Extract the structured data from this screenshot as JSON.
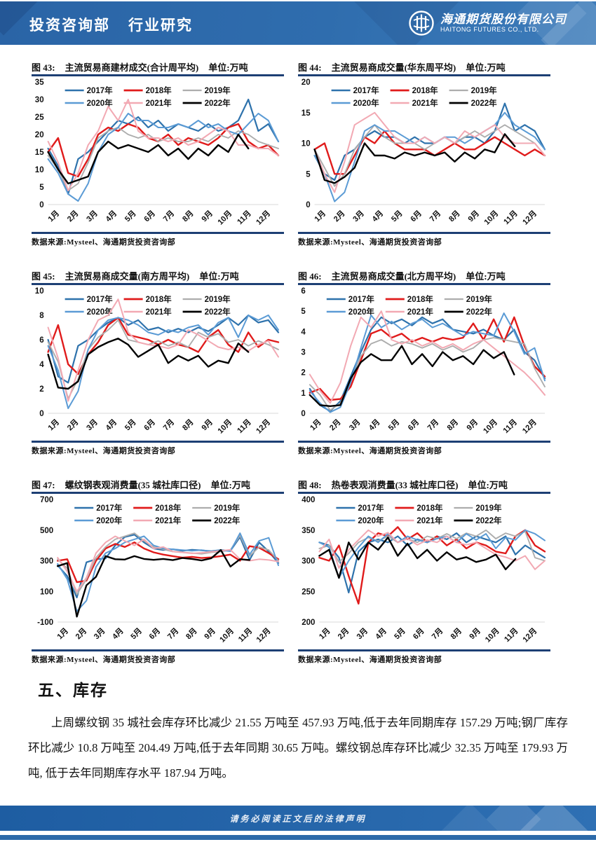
{
  "header": {
    "dept": "投资咨询部",
    "section": "行业研究",
    "company_cn": "海通期货股份有限公司",
    "company_en": "HAITONG FUTURES CO., LTD."
  },
  "footer": {
    "disclaimer": "请务必阅读正文后的法律声明"
  },
  "section": {
    "heading": "五、库存",
    "paragraph": "上周螺纹钢 35 城社会库存环比减少 21.55 万吨至 457.93 万吨,低于去年同期库存 157.29 万吨;钢厂库存环比减少 10.8 万吨至 204.49 万吨,低于去年同期 30.65 万吨。螺纹钢总库存环比减少 32.35 万吨至 179.93 万吨, 低于去年同期库存水平 187.94 万吨。"
  },
  "source_label": "数据来源:Mysteel、海通期货投资咨询部",
  "months": [
    "1月",
    "2月",
    "3月",
    "4月",
    "5月",
    "6月",
    "7月",
    "8月",
    "9月",
    "10月",
    "11月",
    "12月"
  ],
  "series_styles": [
    {
      "name": "2017年",
      "color": "#2E72AC",
      "width": 2.2
    },
    {
      "name": "2018年",
      "color": "#E01B1B",
      "width": 2.4
    },
    {
      "name": "2019年",
      "color": "#ADADAD",
      "width": 1.9
    },
    {
      "name": "2020年",
      "color": "#5B9BD5",
      "width": 2.0
    },
    {
      "name": "2021年",
      "color": "#F2A9B3",
      "width": 2.0
    },
    {
      "name": "2022年",
      "color": "#000000",
      "width": 2.4
    }
  ],
  "chart_data": [
    {
      "type": "line",
      "fig_label": "图 43:",
      "title": "主流贸易商建材成交(合计周平均)",
      "unit": "单位:万吨",
      "ylim": [
        0,
        35
      ],
      "ystep": 5,
      "legend_position": "top-inside",
      "grid": false,
      "series": [
        {
          "name": "2017年",
          "values": [
            16,
            11,
            3,
            13,
            15,
            18,
            21,
            24,
            23,
            25,
            22,
            24,
            21,
            23,
            22,
            21,
            23,
            21,
            22,
            24,
            30,
            21,
            23,
            18
          ]
        },
        {
          "name": "2018年",
          "values": [
            15,
            19,
            9,
            8,
            13,
            20,
            22,
            21,
            23,
            22,
            19,
            18,
            20,
            17,
            19,
            18,
            17,
            19,
            22,
            23,
            18,
            16,
            17,
            14
          ]
        },
        {
          "name": "2019年",
          "values": [
            14,
            10,
            4,
            6,
            12,
            19,
            21,
            22,
            20,
            19,
            20,
            18,
            19,
            18,
            18,
            19,
            18,
            20,
            19,
            21,
            20,
            18,
            17,
            16
          ]
        },
        {
          "name": "2020年",
          "values": [
            13,
            9,
            3,
            1,
            6,
            15,
            20,
            22,
            26,
            24,
            24,
            22,
            22,
            23,
            22,
            24,
            22,
            23,
            21,
            20,
            23,
            26,
            24,
            18
          ]
        },
        {
          "name": "2021年",
          "values": [
            18,
            12,
            4,
            9,
            17,
            21,
            28,
            24,
            30,
            21,
            19,
            19,
            18,
            19,
            17,
            18,
            20,
            22,
            21,
            17,
            17,
            16,
            16,
            14
          ]
        },
        {
          "name": "2022年",
          "values": [
            15,
            10,
            6,
            7,
            8,
            15,
            18,
            16,
            17,
            16,
            15,
            17,
            14,
            16,
            13,
            16,
            14,
            17,
            15,
            20,
            16
          ]
        }
      ]
    },
    {
      "type": "line",
      "fig_label": "图 44:",
      "title": "主流贸易商成交量(华东周平均)",
      "unit": "单位:万吨",
      "ylim": [
        0,
        20
      ],
      "ystep": 5,
      "legend_position": "top-inside",
      "grid": false,
      "series": [
        {
          "name": "2017年",
          "values": [
            8,
            5,
            4,
            8,
            9,
            11,
            12,
            11,
            11,
            10,
            11,
            10,
            10,
            11,
            10,
            11,
            11,
            10,
            12,
            16.5,
            12,
            13,
            12,
            9
          ]
        },
        {
          "name": "2018年",
          "values": [
            9,
            10,
            5,
            5,
            8,
            11,
            10,
            12,
            10,
            9,
            9,
            9,
            8,
            9,
            10,
            9,
            9,
            10,
            11,
            10,
            9,
            8,
            9,
            8
          ]
        },
        {
          "name": "2019年",
          "values": [
            9,
            6,
            3,
            5,
            9,
            11,
            13,
            11,
            10,
            10,
            10,
            9,
            10,
            11,
            10,
            11,
            12,
            11,
            12,
            13,
            12,
            11,
            10,
            8
          ]
        },
        {
          "name": "2020年",
          "values": [
            8,
            5,
            0.5,
            2,
            7,
            12,
            13,
            12,
            12,
            11,
            10,
            11,
            10,
            11,
            11,
            10,
            11,
            12,
            13,
            15,
            13,
            12,
            11,
            9
          ]
        },
        {
          "name": "2021年",
          "values": [
            9,
            5,
            2,
            7,
            13,
            14,
            15,
            13,
            11,
            10,
            10,
            11,
            10,
            11,
            10,
            12,
            11,
            12,
            13,
            11,
            10,
            10,
            10,
            8
          ]
        },
        {
          "name": "2022年",
          "values": [
            9,
            4,
            3.5,
            4.5,
            6,
            10,
            8,
            8,
            7.5,
            8.5,
            8,
            8.5,
            8,
            8.5,
            7,
            8.5,
            7.5,
            9,
            8.5,
            11.5,
            9.5
          ]
        }
      ]
    },
    {
      "type": "line",
      "fig_label": "图 45:",
      "title": "主流贸易商成交量(南方周平均)",
      "unit": "单位:万吨",
      "ylim": [
        0,
        10
      ],
      "ystep": 2,
      "legend_position": "top-inside",
      "grid": false,
      "series": [
        {
          "name": "2017年",
          "values": [
            6,
            3,
            2.5,
            5.5,
            6,
            6.8,
            7.4,
            7.8,
            7.2,
            7.6,
            6.8,
            7,
            6.6,
            6.9,
            6.6,
            7,
            6.7,
            7.2,
            7.8,
            7.2,
            8,
            7.4,
            7.6,
            6.6
          ]
        },
        {
          "name": "2018年",
          "values": [
            5,
            7.2,
            4,
            3.2,
            4.8,
            5.8,
            7.2,
            7.8,
            6.4,
            6.2,
            6,
            5.6,
            6,
            5.6,
            5.4,
            5,
            6.2,
            6.8,
            5.6,
            5,
            6.6,
            5.4,
            6,
            5.8
          ]
        },
        {
          "name": "2019年",
          "values": [
            5.8,
            4.2,
            1.2,
            2.8,
            5.2,
            6.2,
            6.8,
            7.6,
            6,
            5.8,
            5.6,
            5.9,
            5.5,
            5.8,
            5.4,
            6.6,
            6.2,
            6.5,
            5.8,
            6,
            5.5,
            5.9,
            5.6,
            5.2
          ]
        },
        {
          "name": "2020年",
          "values": [
            5.5,
            3.5,
            0.4,
            1.8,
            5.2,
            6.8,
            7.6,
            7.8,
            7.6,
            7.2,
            6.6,
            6.4,
            6.8,
            6.6,
            7,
            7.2,
            6.4,
            7.4,
            7.8,
            6.2,
            8,
            7.6,
            8,
            6.8
          ]
        },
        {
          "name": "2021年",
          "values": [
            7,
            4.5,
            1,
            3.5,
            6,
            7.6,
            8,
            9.3,
            6.6,
            5.8,
            5.6,
            5.5,
            5.3,
            5.6,
            6.8,
            6.4,
            5.9,
            5.4,
            5.2,
            5.4,
            5.1,
            5.6,
            5.9,
            4.6
          ]
        },
        {
          "name": "2022年",
          "values": [
            4.8,
            2.1,
            2,
            2.6,
            4.8,
            5.4,
            5.8,
            6.1,
            5.6,
            4.6,
            5.1,
            5.6,
            4.1,
            4.7,
            4.3,
            4.7,
            3.8,
            4.3,
            4.1,
            5.7,
            5
          ]
        }
      ]
    },
    {
      "type": "line",
      "fig_label": "图 46:",
      "title": "主流贸易商成交量(北方周平均)",
      "unit": "单位:万吨",
      "ylim": [
        0,
        6
      ],
      "ystep": 1,
      "legend_position": "top-inside",
      "grid": false,
      "series": [
        {
          "name": "2017年",
          "values": [
            1.2,
            0.4,
            0.1,
            0.6,
            1.8,
            3,
            4.1,
            4.7,
            4.4,
            4.6,
            4.3,
            4.7,
            4.4,
            4.6,
            4.1,
            4,
            3.9,
            4.1,
            3.8,
            3.6,
            4.1,
            3,
            2.6,
            1.7
          ]
        },
        {
          "name": "2018年",
          "values": [
            1,
            1.2,
            0.65,
            0.7,
            1.3,
            2.6,
            3.9,
            4.1,
            3.7,
            3.9,
            3.5,
            3.7,
            3.5,
            3.7,
            3.6,
            3.7,
            4.4,
            3.6,
            4.6,
            3.5,
            4.7,
            3.3,
            2.3,
            1.8
          ]
        },
        {
          "name": "2019年",
          "values": [
            1.4,
            0.9,
            0.15,
            0.5,
            1.6,
            2.8,
            3.4,
            3.6,
            3.3,
            3.5,
            3.4,
            3.2,
            3.4,
            3.1,
            3.3,
            3,
            3.2,
            3.6,
            3.7,
            3.6,
            3.5,
            3.4,
            2.2,
            1.3
          ]
        },
        {
          "name": "2020年",
          "values": [
            1.1,
            0.5,
            0.05,
            0.3,
            1.5,
            3.2,
            4.8,
            4.2,
            4.5,
            4.1,
            4.4,
            4.6,
            4.2,
            4.4,
            4.1,
            3.8,
            4,
            3.9,
            3.8,
            4.9,
            4,
            2.9,
            3.2,
            1.6
          ]
        },
        {
          "name": "2021年",
          "values": [
            1.9,
            1.1,
            0.5,
            1.5,
            3.3,
            4.7,
            4.2,
            5,
            3.6,
            3.4,
            3.6,
            3.3,
            3.5,
            3.2,
            3.4,
            3.1,
            3.4,
            3.6,
            3.2,
            2.8,
            2.4,
            2,
            1.5,
            0.9
          ]
        },
        {
          "name": "2022年",
          "values": [
            0.9,
            0.4,
            0.35,
            0.4,
            1.7,
            2.5,
            2.9,
            2.6,
            2.6,
            3.3,
            2.4,
            2.9,
            2.3,
            3,
            2.6,
            2.8,
            2.4,
            3.1,
            2.7,
            3,
            1.9
          ]
        }
      ]
    },
    {
      "type": "line",
      "fig_label": "图 47:",
      "title": "螺纹钢表观消费量(35 城社库口径)",
      "unit": "单位:万吨",
      "ylim": [
        -100,
        700
      ],
      "ystep": 200,
      "legend_position": "top-inside",
      "grid": false,
      "series": [
        {
          "name": "2017年",
          "values": [
            270,
            200,
            60,
            290,
            310,
            315,
            400,
            455,
            470,
            420,
            380,
            370,
            375,
            365,
            372,
            368,
            362,
            370,
            365,
            455,
            305,
            420,
            360,
            285
          ]
        },
        {
          "name": "2018年",
          "values": [
            300,
            310,
            160,
            170,
            300,
            380,
            410,
            390,
            420,
            380,
            355,
            340,
            330,
            320,
            325,
            318,
            322,
            330,
            340,
            300,
            395,
            385,
            350,
            310
          ]
        },
        {
          "name": "2019年",
          "values": [
            310,
            250,
            80,
            180,
            320,
            390,
            440,
            460,
            480,
            430,
            390,
            375,
            360,
            355,
            350,
            345,
            355,
            360,
            370,
            465,
            330,
            390,
            370,
            300
          ]
        },
        {
          "name": "2020年",
          "values": [
            280,
            180,
            -30,
            40,
            260,
            350,
            380,
            420,
            440,
            460,
            400,
            380,
            375,
            370,
            365,
            370,
            360,
            368,
            362,
            480,
            340,
            430,
            450,
            270
          ]
        },
        {
          "name": "2021年",
          "values": [
            320,
            230,
            100,
            190,
            350,
            420,
            460,
            430,
            400,
            440,
            380,
            390,
            360,
            355,
            348,
            352,
            358,
            365,
            372,
            310,
            300,
            310,
            305,
            295
          ]
        },
        {
          "name": "2022年",
          "values": [
            265,
            285,
            -65,
            140,
            195,
            330,
            310,
            308,
            330,
            312,
            306,
            312,
            304,
            318,
            312,
            302,
            316,
            370,
            262,
            310,
            305
          ]
        }
      ]
    },
    {
      "type": "line",
      "fig_label": "图 48:",
      "title": "热卷表观消费量(33 城社库口径)",
      "unit": "单位:万吨",
      "ylim": [
        200,
        400
      ],
      "ystep": 50,
      "legend_position": "top-inside",
      "grid": false,
      "series": [
        {
          "name": "2017年",
          "values": [
            330,
            325,
            305,
            248,
            315,
            330,
            335,
            330,
            340,
            325,
            335,
            330,
            340,
            335,
            345,
            330,
            340,
            335,
            330,
            340,
            310,
            325,
            315,
            305
          ]
        },
        {
          "name": "2018年",
          "values": [
            305,
            300,
            325,
            275,
            230,
            330,
            345,
            340,
            355,
            335,
            345,
            330,
            340,
            325,
            335,
            320,
            330,
            325,
            315,
            312,
            340,
            350,
            325,
            315
          ]
        },
        {
          "name": "2019年",
          "values": [
            320,
            325,
            298,
            312,
            330,
            338,
            332,
            340,
            330,
            336,
            330,
            340,
            336,
            344,
            336,
            345,
            340,
            350,
            336,
            345,
            340,
            348,
            305,
            300
          ]
        },
        {
          "name": "2020年",
          "values": [
            330,
            322,
            272,
            300,
            322,
            340,
            330,
            344,
            330,
            340,
            334,
            330,
            336,
            340,
            330,
            344,
            334,
            344,
            320,
            338,
            334,
            350,
            344,
            333
          ]
        },
        {
          "name": "2021年",
          "values": [
            315,
            335,
            288,
            318,
            334,
            350,
            340,
            346,
            330,
            336,
            326,
            334,
            330,
            340,
            330,
            326,
            330,
            320,
            310,
            306,
            300,
            308,
            286,
            300
          ]
        },
        {
          "name": "2022年",
          "values": [
            308,
            318,
            272,
            330,
            302,
            330,
            318,
            338,
            308,
            328,
            304,
            318,
            300,
            314,
            302,
            306,
            298,
            302,
            310,
            286,
            303
          ]
        }
      ]
    }
  ]
}
